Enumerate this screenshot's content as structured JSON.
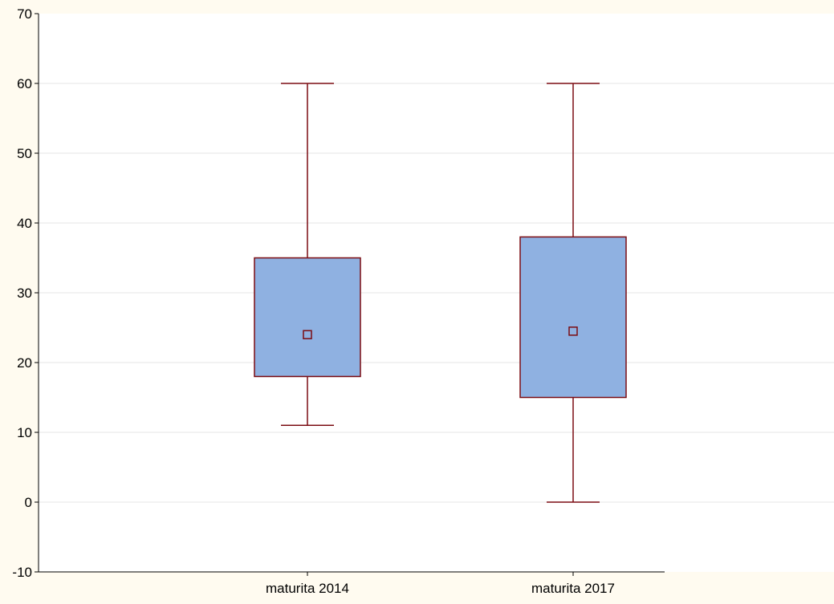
{
  "colors": {
    "page_background": "#fffbf0",
    "plot_background": "#ffffff",
    "box_fill": "#8fb1e1",
    "box_stroke": "#7b0c12",
    "gridline": "#e6e6e6",
    "axis": "#000000"
  },
  "chart_data": {
    "type": "box",
    "title": "",
    "xlabel": "",
    "ylabel": "",
    "ylim": [
      -10,
      70
    ],
    "y_ticks": [
      -10,
      0,
      10,
      20,
      30,
      40,
      50,
      60,
      70
    ],
    "grid": true,
    "categories": [
      "maturita 2014",
      "maturita 2017"
    ],
    "boxes": [
      {
        "category": "maturita 2014",
        "whisker_low": 11,
        "q1": 18,
        "median": 24,
        "q3": 35,
        "whisker_high": 60
      },
      {
        "category": "maturita 2017",
        "whisker_low": 0,
        "q1": 15,
        "median": 24.5,
        "q3": 38,
        "whisker_high": 60
      }
    ]
  }
}
